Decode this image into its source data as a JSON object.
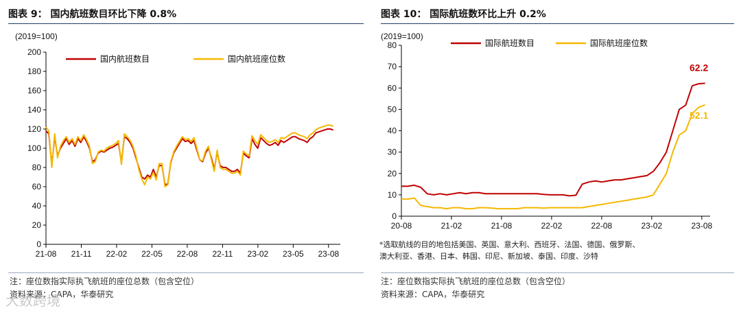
{
  "left": {
    "figure_title": "图表 9：  国内航班数目环比下降 0.8%",
    "notes": [
      "注：座位数指实际执飞航班的座位总数（包含空位）",
      "资料来源：CAPA，华泰研究"
    ],
    "series_colors": [
      "#c00000",
      "#f5b800"
    ],
    "chart_data": {
      "type": "line",
      "ylabel": "(2019=100)",
      "ylim": [
        0,
        200
      ],
      "yticks": [
        0,
        20,
        40,
        60,
        80,
        100,
        120,
        140,
        160,
        180,
        200
      ],
      "xtick_labels": [
        "21-08",
        "21-11",
        "22-02",
        "22-05",
        "22-08",
        "22-11",
        "23-02",
        "23-05",
        "23-08"
      ],
      "x_start": "21-08",
      "x_end": "23-09",
      "legend_location": "top",
      "series": [
        {
          "name": "国内航班数目",
          "values": [
            118,
            115,
            82,
            112,
            92,
            100,
            105,
            110,
            104,
            108,
            102,
            110,
            106,
            112,
            107,
            100,
            86,
            88,
            95,
            97,
            96,
            98,
            100,
            101,
            103,
            105,
            85,
            112,
            110,
            106,
            100,
            90,
            80,
            70,
            68,
            72,
            70,
            78,
            70,
            82,
            82,
            62,
            63,
            85,
            95,
            100,
            105,
            110,
            107,
            108,
            105,
            108,
            98,
            88,
            86,
            95,
            100,
            90,
            78,
            96,
            82,
            80,
            80,
            78,
            76,
            76,
            78,
            74,
            95,
            92,
            90,
            110,
            104,
            100,
            111,
            108,
            105,
            103,
            104,
            106,
            103,
            108,
            106,
            108,
            110,
            112,
            112,
            110,
            109,
            108,
            106,
            110,
            112,
            116,
            117,
            118,
            119,
            120,
            120,
            119
          ]
        },
        {
          "name": "国内航班座位数",
          "values": [
            122,
            118,
            80,
            115,
            90,
            102,
            108,
            112,
            106,
            110,
            104,
            112,
            108,
            114,
            109,
            102,
            84,
            86,
            96,
            98,
            97,
            100,
            102,
            103,
            105,
            108,
            83,
            115,
            112,
            108,
            102,
            92,
            78,
            68,
            62,
            70,
            68,
            75,
            67,
            84,
            84,
            60,
            62,
            86,
            96,
            102,
            107,
            112,
            109,
            110,
            107,
            111,
            100,
            88,
            87,
            97,
            102,
            88,
            76,
            98,
            80,
            78,
            78,
            76,
            74,
            74,
            76,
            72,
            97,
            94,
            92,
            113,
            108,
            104,
            114,
            111,
            108,
            106,
            107,
            109,
            106,
            111,
            110,
            112,
            114,
            116,
            116,
            114,
            113,
            112,
            110,
            114,
            116,
            119,
            121,
            122,
            123,
            124,
            124,
            123
          ]
        }
      ]
    }
  },
  "right": {
    "figure_title": "图表 10：  国际航班数环比上升 0.2%",
    "notes": [
      "注：座位数指实际执飞航班的座位总数（包含空位）",
      "资料来源：CAPA，华泰研究"
    ],
    "series_colors": [
      "#c00000",
      "#f5b800"
    ],
    "annotation_text": [
      "*选取航线的目的地包括美国、英国、意大利、西班牙、法国、德国、俄罗斯、",
      "澳大利亚、香港、日本、韩国、印尼、新加坡、泰国、印度、沙特"
    ],
    "chart_data": {
      "type": "line",
      "ylabel": "(2019=100)",
      "ylim": [
        0,
        80
      ],
      "yticks": [
        0,
        10,
        20,
        30,
        40,
        50,
        60,
        70,
        80
      ],
      "xtick_labels": [
        "20-08",
        "21-02",
        "21-08",
        "22-02",
        "22-08",
        "23-02",
        "23-08"
      ],
      "x_start": "20-08",
      "x_end": "23-09",
      "legend_location": "top",
      "end_labels": [
        "62.2",
        "52.1"
      ],
      "series": [
        {
          "name": "国际航班数目",
          "values": [
            14,
            14,
            14.5,
            13.5,
            10.5,
            10,
            10.5,
            10,
            10.5,
            11,
            10.5,
            11,
            11,
            10.5,
            10.5,
            10.5,
            10.5,
            10.5,
            10.5,
            10.5,
            10.5,
            10.5,
            10.2,
            10,
            10,
            10,
            9.5,
            9.8,
            15,
            16,
            16.5,
            16,
            16.5,
            17,
            17,
            17.5,
            18,
            18.5,
            19,
            21,
            25,
            30,
            40,
            50,
            52,
            61,
            62,
            62.2
          ]
        },
        {
          "name": "国际航班座位数",
          "values": [
            8,
            8,
            8.5,
            5,
            4.5,
            4,
            4,
            3.5,
            4,
            4,
            3.5,
            3.5,
            4,
            4,
            3.8,
            3.5,
            3.5,
            3.5,
            3.5,
            4,
            4,
            4,
            3.8,
            4,
            4,
            4,
            4,
            4,
            4,
            4.5,
            5,
            5.5,
            6,
            6.5,
            7,
            7.5,
            8,
            8.5,
            9,
            10,
            15,
            20,
            30,
            38,
            40,
            48,
            51,
            52.1
          ]
        }
      ]
    }
  },
  "watermark": "大数跨境"
}
